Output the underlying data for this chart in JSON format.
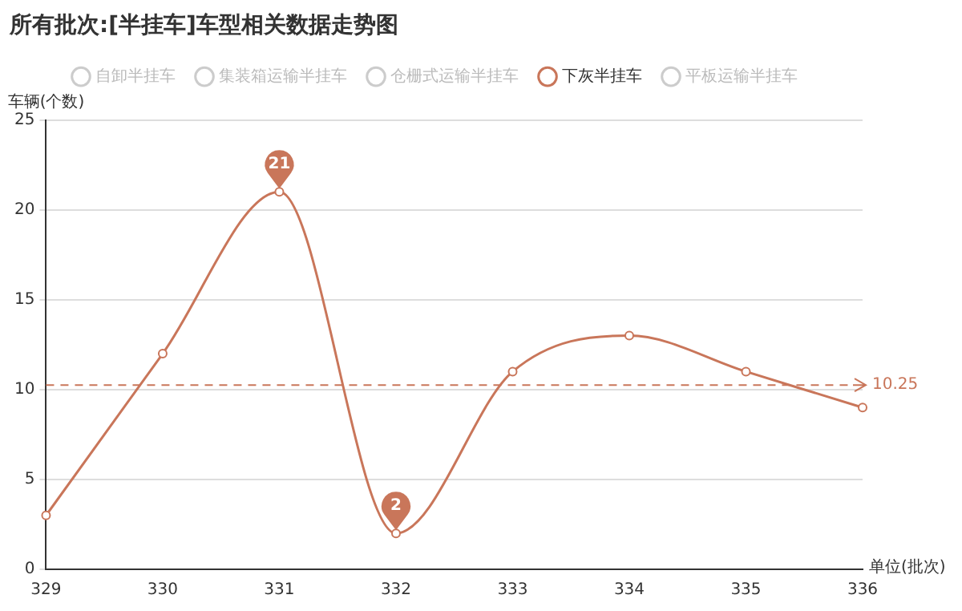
{
  "chart_data": {
    "type": "line",
    "title": "所有批次:[半挂车]车型相关数据走势图",
    "xlabel": "单位(批次)",
    "ylabel": "车辆(个数)",
    "categories": [
      "329",
      "330",
      "331",
      "332",
      "333",
      "334",
      "335",
      "336"
    ],
    "series": [
      {
        "name": "自卸半挂车",
        "color": "#cccccc",
        "values": [
          null,
          null,
          null,
          null,
          null,
          null,
          null,
          null
        ]
      },
      {
        "name": "集装箱运输半挂车",
        "color": "#cccccc",
        "values": [
          null,
          null,
          null,
          null,
          null,
          null,
          null,
          null
        ]
      },
      {
        "name": "仓栅式运输半挂车",
        "color": "#cccccc",
        "values": [
          null,
          null,
          null,
          null,
          null,
          null,
          null,
          null
        ]
      },
      {
        "name": "下灰半挂车",
        "color": "#c9765a",
        "values": [
          3,
          12,
          21,
          2,
          11,
          13,
          11,
          9
        ]
      },
      {
        "name": "平板运输半挂车",
        "color": "#cccccc",
        "values": [
          null,
          null,
          null,
          null,
          null,
          null,
          null,
          null
        ]
      }
    ],
    "ylim": [
      0,
      25
    ],
    "yticks": [
      0,
      5,
      10,
      15,
      20,
      25
    ],
    "grid": "y",
    "legend": "top",
    "marker": "circle",
    "line_style": "solid",
    "ref_lines": [
      {
        "axis": "y",
        "value": 10.25,
        "label": "10.25",
        "color": "#c9765a",
        "line_style": "dashed"
      }
    ],
    "annotations": [
      {
        "text": "21",
        "x": "331",
        "y": 21
      },
      {
        "text": "2",
        "x": "332",
        "y": 2
      }
    ]
  }
}
